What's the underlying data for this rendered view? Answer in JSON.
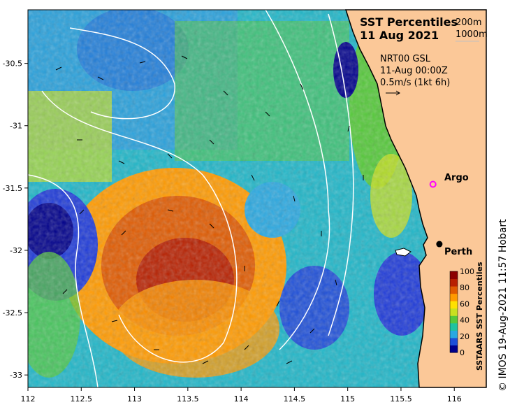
{
  "title": {
    "line1": "SST Percentiles",
    "line2": "11 Aug 2021"
  },
  "depth_legend": [
    "200m",
    "1000m"
  ],
  "meta": {
    "line1": "NRT00 GSL",
    "line2": "11-Aug 00:00Z",
    "line3": "0.5m/s (1kt 6h)"
  },
  "places": [
    {
      "name": "Argo",
      "lon": 115.8,
      "lat": -31.47,
      "marker": "magenta-circle"
    },
    {
      "name": "Perth",
      "lon": 115.86,
      "lat": -31.95,
      "marker": "black-dot"
    }
  ],
  "credit": "© IMOS 19-Aug-2021 11:57 Hobart",
  "x_axis": {
    "ticks": [
      "112",
      "112.5",
      "113",
      "113.5",
      "114",
      "114.5",
      "115",
      "115.5",
      "116"
    ],
    "range": [
      112,
      116.3
    ]
  },
  "y_axis": {
    "ticks": [
      "-30.5",
      "-31",
      "-31.5",
      "-32",
      "-32.5",
      "-33"
    ],
    "range": [
      -33.1,
      -30.07
    ]
  },
  "colorbar": {
    "label": "SSTAARS SST Percentiles",
    "ticks": [
      "0",
      "20",
      "40",
      "60",
      "80",
      "100"
    ],
    "colors": [
      "#00008b",
      "#1e4fd8",
      "#2aa8e0",
      "#1fc2a0",
      "#55c83a",
      "#c8e020",
      "#ffe000",
      "#ff9a00",
      "#e05a00",
      "#b82000",
      "#8b0000"
    ]
  },
  "colors": {
    "land": "#fbc898",
    "coast": "#000000",
    "contour": "#ffffff"
  }
}
